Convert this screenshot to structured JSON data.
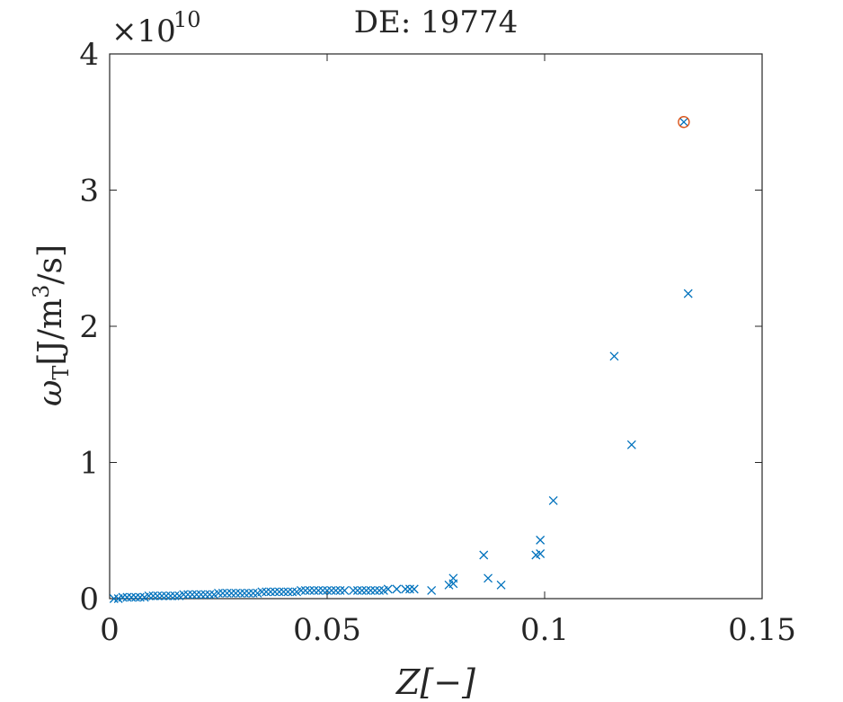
{
  "chart_data": {
    "type": "scatter",
    "title": "DE: 19774",
    "xlabel": "Z[−]",
    "ylabel": "ω",
    "ylabel_subscript": "T",
    "ylabel_units": "[J/m",
    "ylabel_units_sup": "3",
    "ylabel_units_tail": "/s]",
    "x_exponent_base": "×10",
    "x_exponent_power": "10",
    "xlim": [
      0,
      0.15
    ],
    "ylim": [
      0,
      40000000000.0
    ],
    "xticks": [
      0,
      0.05,
      0.1,
      0.15
    ],
    "xtick_labels": [
      "0",
      "0.05",
      "0.1",
      "0.15"
    ],
    "yticks": [
      0,
      10000000000.0,
      20000000000.0,
      30000000000.0,
      40000000000.0
    ],
    "ytick_labels": [
      "0",
      "1",
      "2",
      "3",
      "4"
    ],
    "grid": false,
    "series": [
      {
        "marker": "x",
        "color": "#0072BD",
        "x": [
          0.001,
          0.002,
          0.003,
          0.004,
          0.005,
          0.006,
          0.007,
          0.008,
          0.009,
          0.01,
          0.011,
          0.012,
          0.013,
          0.014,
          0.015,
          0.016,
          0.017,
          0.018,
          0.019,
          0.02,
          0.021,
          0.022,
          0.023,
          0.024,
          0.025,
          0.026,
          0.027,
          0.028,
          0.029,
          0.03,
          0.031,
          0.032,
          0.033,
          0.034,
          0.035,
          0.036,
          0.037,
          0.038,
          0.039,
          0.04,
          0.041,
          0.042,
          0.043,
          0.044,
          0.045,
          0.046,
          0.047,
          0.048,
          0.049,
          0.05,
          0.051,
          0.052,
          0.053,
          0.054,
          0.056,
          0.057,
          0.058,
          0.059,
          0.06,
          0.061,
          0.062,
          0.063,
          0.064,
          0.066,
          0.068,
          0.069,
          0.07,
          0.074,
          0.078,
          0.079,
          0.079,
          0.086,
          0.087,
          0.09,
          0.098,
          0.099,
          0.099,
          0.102,
          0.116,
          0.12,
          0.132,
          0.133
        ],
        "y": [
          0.0,
          0.0,
          100000000.0,
          100000000.0,
          100000000.0,
          100000000.0,
          100000000.0,
          100000000.0,
          200000000.0,
          200000000.0,
          200000000.0,
          200000000.0,
          200000000.0,
          200000000.0,
          200000000.0,
          200000000.0,
          300000000.0,
          300000000.0,
          300000000.0,
          300000000.0,
          300000000.0,
          300000000.0,
          300000000.0,
          300000000.0,
          400000000.0,
          400000000.0,
          400000000.0,
          400000000.0,
          400000000.0,
          400000000.0,
          400000000.0,
          400000000.0,
          400000000.0,
          400000000.0,
          500000000.0,
          500000000.0,
          500000000.0,
          500000000.0,
          500000000.0,
          500000000.0,
          500000000.0,
          500000000.0,
          500000000.0,
          600000000.0,
          600000000.0,
          600000000.0,
          600000000.0,
          600000000.0,
          600000000.0,
          600000000.0,
          600000000.0,
          600000000.0,
          600000000.0,
          600000000.0,
          600000000.0,
          600000000.0,
          600000000.0,
          600000000.0,
          600000000.0,
          600000000.0,
          600000000.0,
          600000000.0,
          700000000.0,
          700000000.0,
          700000000.0,
          700000000.0,
          700000000.0,
          600000000.0,
          1000000000.0,
          1500000000.0,
          1100000000.0,
          3200000000.0,
          1500000000.0,
          1000000000.0,
          3200000000.0,
          3300000000.0,
          4300000000.0,
          7200000000.0,
          17800000000.0,
          11300000000.0,
          35000000000.0,
          22400000000.0
        ]
      }
    ],
    "highlight": {
      "marker": "circle",
      "color": "#D95319",
      "x": 0.132,
      "y": 35000000000.0
    }
  }
}
